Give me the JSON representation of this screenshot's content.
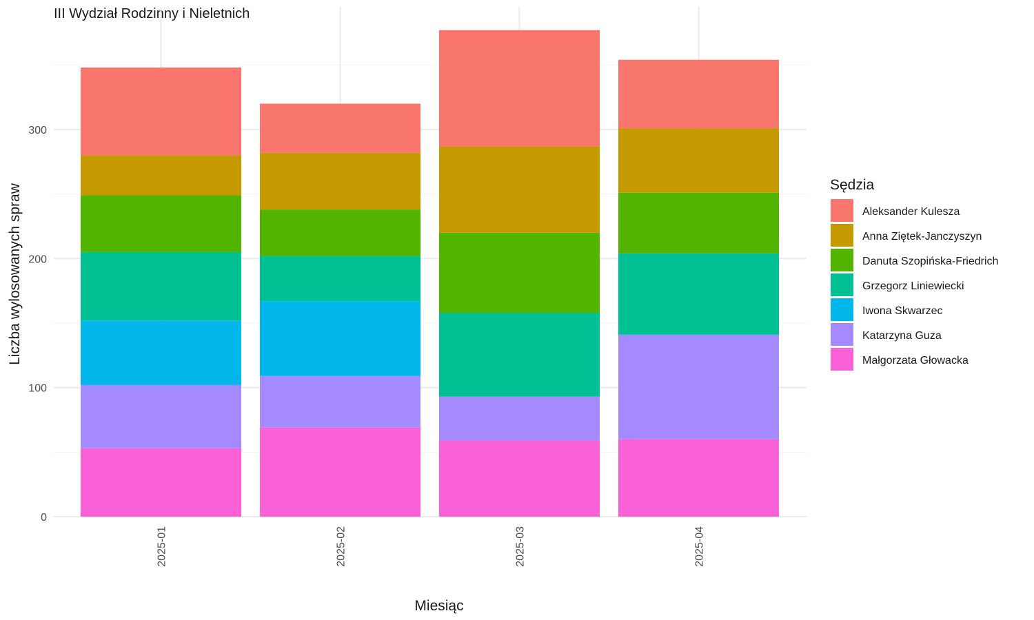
{
  "chart_data": {
    "type": "bar",
    "stacked": true,
    "title": "III Wydział Rodzinny i Nieletnich",
    "xlabel": "Miesiąc",
    "ylabel": "Liczba wylosowanych spraw",
    "ylim": [
      0,
      395
    ],
    "yticks": [
      0,
      100,
      200,
      300
    ],
    "grid": true,
    "legend_title": "Sędzia",
    "legend_position": "right",
    "categories": [
      "2025-01",
      "2025-02",
      "2025-03",
      "2025-04"
    ],
    "series": [
      {
        "name": "Małgorzata Głowacka",
        "color": "#FB61D7",
        "values": [
          53,
          69,
          59,
          60
        ]
      },
      {
        "name": "Katarzyna Guza",
        "color": "#A58AFF",
        "values": [
          49,
          40,
          34,
          81
        ]
      },
      {
        "name": "Iwona Skwarzec",
        "color": "#00B6EB",
        "values": [
          50,
          58,
          0,
          0
        ]
      },
      {
        "name": "Grzegorz Liniewiecki",
        "color": "#00C094",
        "values": [
          53,
          35,
          65,
          63
        ]
      },
      {
        "name": "Danuta Szopińska-Friedrich",
        "color": "#53B400",
        "values": [
          44,
          36,
          62,
          47
        ]
      },
      {
        "name": "Anna Ziętek-Janczyszyn",
        "color": "#C49A00",
        "values": [
          31,
          44,
          67,
          50
        ]
      },
      {
        "name": "Aleksander Kulesza",
        "color": "#F8766D",
        "values": [
          68,
          38,
          90,
          53
        ]
      }
    ],
    "legend_order": [
      "Aleksander Kulesza",
      "Anna Ziętek-Janczyszyn",
      "Danuta Szopińska-Friedrich",
      "Grzegorz Liniewiecki",
      "Iwona Skwarzec",
      "Katarzyna Guza",
      "Małgorzata Głowacka"
    ]
  }
}
